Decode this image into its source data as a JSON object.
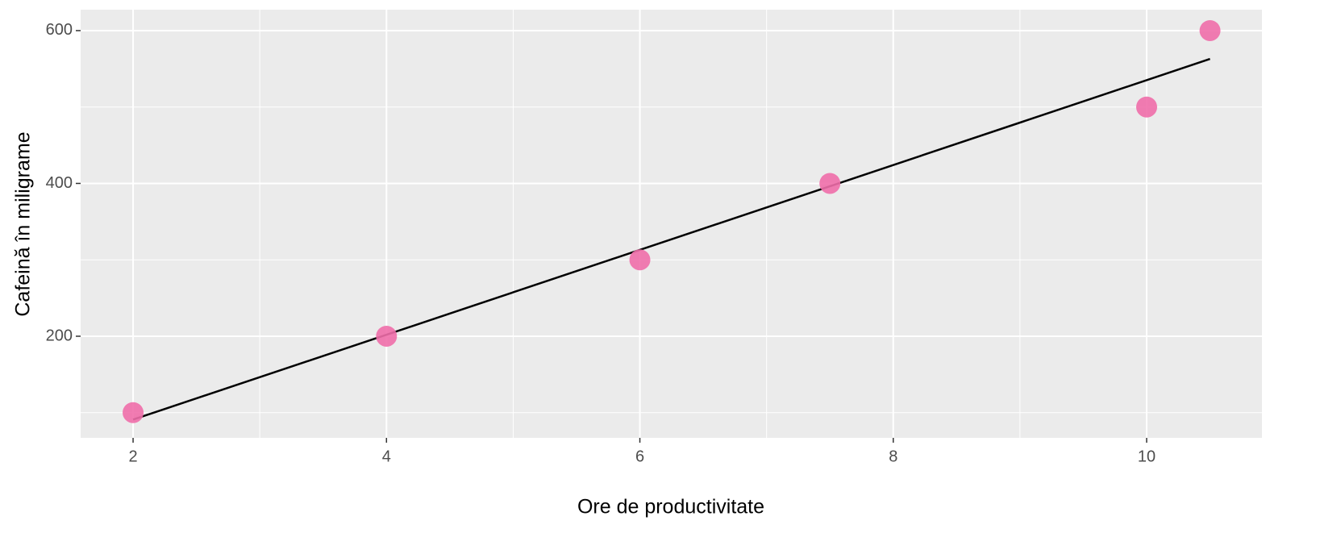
{
  "chart_data": {
    "type": "scatter",
    "x_label": "Ore de productivitate",
    "y_label": "Cafeină în miligrame",
    "series": [
      {
        "x": [
          2,
          4,
          6,
          7.5,
          10,
          10.5
        ],
        "values": [
          100,
          200,
          300,
          400,
          500,
          600
        ],
        "color": "#f06eaa"
      }
    ],
    "fit_line": {
      "x": [
        2,
        10.5
      ],
      "values": [
        90.9,
        562.9
      ],
      "color": "#000000"
    },
    "xlim": [
      1.586,
      10.91
    ],
    "ylim": [
      67,
      627.4
    ],
    "xticks": [
      2,
      4,
      6,
      8,
      10
    ],
    "yticks": [
      200,
      400,
      600
    ],
    "x_minor_grid": [
      3,
      5,
      7,
      9
    ],
    "y_minor_grid": [
      100,
      300,
      500
    ],
    "grid": true,
    "panel_color": "#ebebeb"
  }
}
